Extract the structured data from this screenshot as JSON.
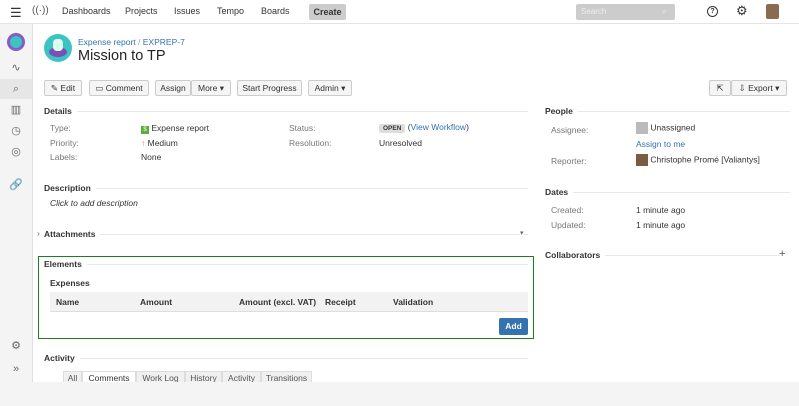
{
  "topbar": {
    "nav": [
      "Dashboards",
      "Projects",
      "Issues",
      "Tempo",
      "Boards"
    ],
    "create": "Create",
    "search_placeholder": "Search"
  },
  "breadcrumb": {
    "project": "Expense report",
    "issue_key": "EXPREP-7"
  },
  "title": "Mission to TP",
  "toolbar": {
    "edit": "Edit",
    "comment": "Comment",
    "assign": "Assign",
    "more": "More",
    "start_progress": "Start Progress",
    "admin": "Admin",
    "export": "Export"
  },
  "details": {
    "heading": "Details",
    "type_label": "Type:",
    "type": "Expense report",
    "priority_label": "Priority:",
    "priority": "Medium",
    "labels_label": "Labels:",
    "labels": "None",
    "status_label": "Status:",
    "status": "OPEN",
    "view_workflow": "View Workflow",
    "resolution_label": "Resolution:",
    "resolution": "Unresolved"
  },
  "description": {
    "heading": "Description",
    "placeholder": "Click to add description"
  },
  "attachments": {
    "heading": "Attachments"
  },
  "elements": {
    "heading": "Elements",
    "subheading": "Expenses",
    "columns": [
      "Name",
      "Amount",
      "Amount (excl. VAT)",
      "Receipt",
      "Validation"
    ],
    "add": "Add",
    "border_color": "#1e7e1e"
  },
  "activity": {
    "heading": "Activity",
    "tabs": [
      "All",
      "Comments",
      "Work Log",
      "History",
      "Activity",
      "Transitions"
    ],
    "active": "Comments"
  },
  "people": {
    "heading": "People",
    "assignee_label": "Assignee:",
    "assignee": "Unassigned",
    "assign_to_me": "Assign to me",
    "reporter_label": "Reporter:",
    "reporter": "Christophe Promé [Valiantys]"
  },
  "dates": {
    "heading": "Dates",
    "created_label": "Created:",
    "created": "1 minute ago",
    "updated_label": "Updated:",
    "updated": "1 minute ago"
  },
  "collaborators": {
    "heading": "Collaborators"
  }
}
